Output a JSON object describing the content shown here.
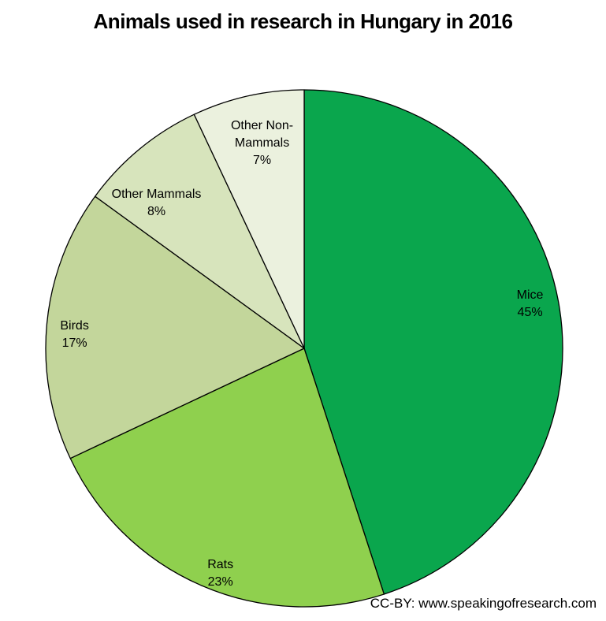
{
  "page": {
    "title": "Animals used in research in Hungary in 2016",
    "credit": "CC-BY: www.speakingofresearch.com"
  },
  "colors": {
    "background": "#FFFFFF",
    "slice_outline": "#000000",
    "label_text": "#000000"
  },
  "chart_data": {
    "type": "pie",
    "title": "Animals used in research in Hungary in 2016",
    "units": "%",
    "start_angle_deg": 0,
    "direction": "clockwise",
    "legend_position": "none",
    "labels_on_slices": true,
    "series": [
      {
        "name": "Mice",
        "value": 45,
        "color": "#0AA64D",
        "label_r": 0.89,
        "label_da": -2
      },
      {
        "name": "Rats",
        "value": 23,
        "color": "#8FD04E",
        "label_r": 0.93,
        "label_da": -3
      },
      {
        "name": "Birds",
        "value": 17,
        "color": "#C3D69B",
        "label_r": 0.89,
        "label_da": -2
      },
      {
        "name": "Other Mammals",
        "value": 8,
        "color": "#D7E4BC",
        "label_r": 0.8,
        "label_da": -6
      },
      {
        "name": "Other Non-Mammals",
        "value": 7,
        "color": "#EBF1DE",
        "label_r": 0.81,
        "label_da": 1
      }
    ]
  }
}
